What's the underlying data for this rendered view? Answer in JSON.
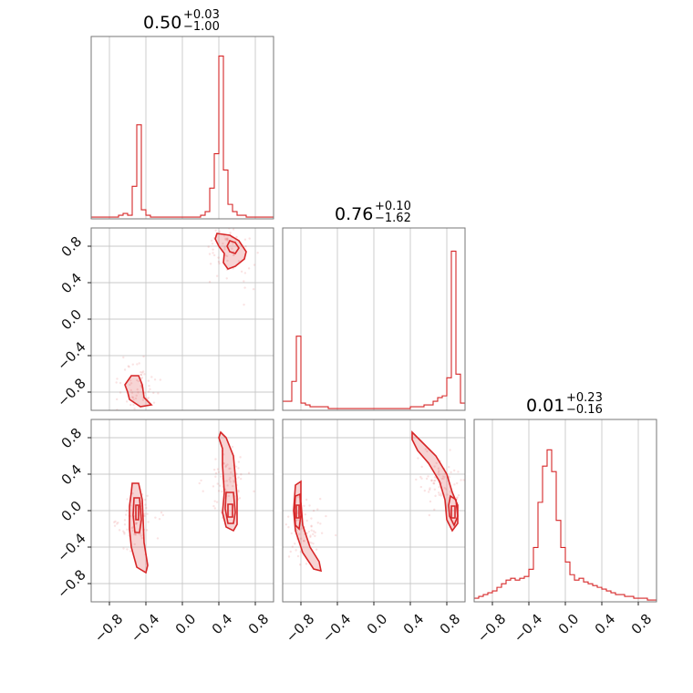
{
  "chart_data": {
    "type": "corner",
    "color": "#d62728",
    "range": [
      -1.0,
      1.0
    ],
    "ticks": [
      -0.8,
      -0.4,
      0.0,
      0.4,
      0.8
    ],
    "tick_labels": [
      "−0.8",
      "−0.4",
      "0.0",
      "0.4",
      "0.8"
    ],
    "grid": true,
    "titles": [
      {
        "value": "0.50",
        "plus": "+0.03",
        "minus": "−1.00"
      },
      {
        "value": "0.76",
        "plus": "+0.10",
        "minus": "−1.62"
      },
      {
        "value": "0.01",
        "plus": "+0.23",
        "minus": "−0.16"
      }
    ],
    "histograms": [
      {
        "bins": [
          -1.0,
          1.0
        ],
        "counts": [
          0.01,
          0.01,
          0.01,
          0.01,
          0.01,
          0.01,
          0.01,
          0.01,
          0.01,
          0.01,
          0.01,
          0.01,
          0.02,
          0.02,
          0.03,
          0.03,
          0.02,
          0.02,
          0.18,
          0.18,
          0.52,
          0.52,
          0.05,
          0.05,
          0.02,
          0.02,
          0.01,
          0.01,
          0.01,
          0.01,
          0.01,
          0.01,
          0.01,
          0.01,
          0.01,
          0.01,
          0.01,
          0.01,
          0.01,
          0.01,
          0.01,
          0.01,
          0.01,
          0.01,
          0.01,
          0.01,
          0.01,
          0.01,
          0.02,
          0.02,
          0.04,
          0.04,
          0.17,
          0.17,
          0.36,
          0.36,
          0.9,
          0.9,
          0.27,
          0.27,
          0.08,
          0.08,
          0.04,
          0.04,
          0.02,
          0.02,
          0.02,
          0.02,
          0.01,
          0.01,
          0.01,
          0.01,
          0.01,
          0.01,
          0.01,
          0.01,
          0.01,
          0.01,
          0.01,
          0.01
        ]
      },
      {
        "bins": [
          -1.0,
          1.0
        ],
        "counts": [
          0.05,
          0.05,
          0.05,
          0.05,
          0.16,
          0.16,
          0.41,
          0.41,
          0.04,
          0.04,
          0.03,
          0.03,
          0.02,
          0.02,
          0.02,
          0.02,
          0.02,
          0.02,
          0.02,
          0.02,
          0.01,
          0.01,
          0.01,
          0.01,
          0.01,
          0.01,
          0.01,
          0.01,
          0.01,
          0.01,
          0.01,
          0.01,
          0.01,
          0.01,
          0.01,
          0.01,
          0.01,
          0.01,
          0.01,
          0.01,
          0.01,
          0.01,
          0.01,
          0.01,
          0.01,
          0.01,
          0.01,
          0.01,
          0.01,
          0.01,
          0.01,
          0.01,
          0.01,
          0.01,
          0.01,
          0.01,
          0.02,
          0.02,
          0.02,
          0.02,
          0.02,
          0.02,
          0.03,
          0.03,
          0.03,
          0.03,
          0.05,
          0.05,
          0.07,
          0.07,
          0.08,
          0.08,
          0.18,
          0.18,
          0.88,
          0.88,
          0.2,
          0.2,
          0.04,
          0.04
        ]
      },
      {
        "bins": [
          -1.0,
          1.0
        ],
        "counts": [
          0.02,
          0.02,
          0.03,
          0.03,
          0.04,
          0.04,
          0.05,
          0.05,
          0.06,
          0.06,
          0.08,
          0.08,
          0.1,
          0.1,
          0.12,
          0.12,
          0.13,
          0.13,
          0.12,
          0.12,
          0.13,
          0.13,
          0.14,
          0.14,
          0.18,
          0.18,
          0.3,
          0.3,
          0.55,
          0.55,
          0.75,
          0.75,
          0.84,
          0.84,
          0.72,
          0.72,
          0.45,
          0.45,
          0.3,
          0.3,
          0.22,
          0.22,
          0.15,
          0.15,
          0.12,
          0.12,
          0.13,
          0.13,
          0.11,
          0.11,
          0.1,
          0.1,
          0.09,
          0.09,
          0.08,
          0.08,
          0.07,
          0.07,
          0.06,
          0.06,
          0.05,
          0.05,
          0.04,
          0.04,
          0.04,
          0.04,
          0.03,
          0.03,
          0.03,
          0.03,
          0.02,
          0.02,
          0.02,
          0.02,
          0.02,
          0.02,
          0.01,
          0.01,
          0.01,
          0.01
        ]
      }
    ],
    "contours": {
      "1-0": [
        {
          "fill": true,
          "points": [
            [
              0.38,
              0.94
            ],
            [
              0.52,
              0.92
            ],
            [
              0.62,
              0.86
            ],
            [
              0.7,
              0.74
            ],
            [
              0.68,
              0.66
            ],
            [
              0.58,
              0.58
            ],
            [
              0.5,
              0.55
            ],
            [
              0.45,
              0.62
            ],
            [
              0.46,
              0.72
            ],
            [
              0.4,
              0.8
            ],
            [
              0.36,
              0.88
            ]
          ]
        },
        {
          "fill": false,
          "points": [
            [
              0.52,
              0.86
            ],
            [
              0.58,
              0.84
            ],
            [
              0.62,
              0.78
            ],
            [
              0.58,
              0.72
            ],
            [
              0.52,
              0.74
            ],
            [
              0.49,
              0.8
            ]
          ]
        },
        {
          "fill": true,
          "points": [
            [
              -0.63,
              -0.72
            ],
            [
              -0.56,
              -0.62
            ],
            [
              -0.48,
              -0.62
            ],
            [
              -0.44,
              -0.72
            ],
            [
              -0.42,
              -0.86
            ],
            [
              -0.34,
              -0.94
            ],
            [
              -0.46,
              -0.96
            ],
            [
              -0.58,
              -0.88
            ],
            [
              -0.6,
              -0.8
            ]
          ]
        }
      ],
      "2-0": [
        {
          "fill": true,
          "points": [
            [
              -0.55,
              0.3
            ],
            [
              -0.48,
              0.3
            ],
            [
              -0.44,
              0.12
            ],
            [
              -0.43,
              -0.1
            ],
            [
              -0.42,
              -0.35
            ],
            [
              -0.38,
              -0.6
            ],
            [
              -0.4,
              -0.68
            ],
            [
              -0.5,
              -0.62
            ],
            [
              -0.56,
              -0.4
            ],
            [
              -0.58,
              -0.2
            ],
            [
              -0.58,
              0.05
            ],
            [
              -0.56,
              0.2
            ]
          ]
        },
        {
          "fill": false,
          "points": [
            [
              -0.53,
              0.14
            ],
            [
              -0.47,
              0.14
            ],
            [
              -0.45,
              -0.1
            ],
            [
              -0.47,
              -0.24
            ],
            [
              -0.52,
              -0.24
            ],
            [
              -0.54,
              -0.05
            ]
          ]
        },
        {
          "fill": false,
          "points": [
            [
              -0.51,
              0.06
            ],
            [
              -0.48,
              0.06
            ],
            [
              -0.48,
              -0.1
            ],
            [
              -0.51,
              -0.1
            ]
          ]
        },
        {
          "fill": true,
          "points": [
            [
              0.42,
              0.86
            ],
            [
              0.48,
              0.8
            ],
            [
              0.56,
              0.6
            ],
            [
              0.58,
              0.38
            ],
            [
              0.6,
              0.15
            ],
            [
              0.6,
              -0.15
            ],
            [
              0.56,
              -0.22
            ],
            [
              0.48,
              -0.18
            ],
            [
              0.44,
              -0.02
            ],
            [
              0.46,
              0.2
            ],
            [
              0.44,
              0.5
            ],
            [
              0.44,
              0.68
            ],
            [
              0.4,
              0.8
            ]
          ]
        },
        {
          "fill": false,
          "points": [
            [
              0.48,
              0.2
            ],
            [
              0.56,
              0.2
            ],
            [
              0.58,
              -0.02
            ],
            [
              0.56,
              -0.14
            ],
            [
              0.5,
              -0.14
            ],
            [
              0.47,
              0.02
            ]
          ]
        },
        {
          "fill": false,
          "points": [
            [
              0.5,
              0.07
            ],
            [
              0.55,
              0.07
            ],
            [
              0.55,
              -0.07
            ],
            [
              0.5,
              -0.07
            ]
          ]
        }
      ],
      "2-1": [
        {
          "fill": true,
          "points": [
            [
              -0.86,
              0.28
            ],
            [
              -0.8,
              0.32
            ],
            [
              -0.8,
              0.1
            ],
            [
              -0.78,
              -0.16
            ],
            [
              -0.7,
              -0.4
            ],
            [
              -0.6,
              -0.56
            ],
            [
              -0.58,
              -0.66
            ],
            [
              -0.66,
              -0.64
            ],
            [
              -0.78,
              -0.46
            ],
            [
              -0.86,
              -0.22
            ],
            [
              -0.88,
              0.0
            ]
          ]
        },
        {
          "fill": false,
          "points": [
            [
              -0.86,
              0.16
            ],
            [
              -0.81,
              0.18
            ],
            [
              -0.8,
              -0.05
            ],
            [
              -0.82,
              -0.2
            ],
            [
              -0.86,
              -0.16
            ],
            [
              -0.87,
              0.0
            ]
          ]
        },
        {
          "fill": false,
          "points": [
            [
              -0.85,
              0.06
            ],
            [
              -0.82,
              0.06
            ],
            [
              -0.82,
              -0.08
            ],
            [
              -0.85,
              -0.08
            ]
          ]
        },
        {
          "fill": true,
          "points": [
            [
              0.42,
              0.86
            ],
            [
              0.52,
              0.76
            ],
            [
              0.68,
              0.6
            ],
            [
              0.8,
              0.4
            ],
            [
              0.86,
              0.2
            ],
            [
              0.92,
              0.06
            ],
            [
              0.92,
              -0.14
            ],
            [
              0.86,
              -0.22
            ],
            [
              0.8,
              -0.1
            ],
            [
              0.78,
              0.12
            ],
            [
              0.72,
              0.32
            ],
            [
              0.6,
              0.52
            ],
            [
              0.48,
              0.66
            ],
            [
              0.42,
              0.78
            ]
          ]
        },
        {
          "fill": false,
          "points": [
            [
              0.84,
              0.16
            ],
            [
              0.9,
              0.12
            ],
            [
              0.92,
              -0.06
            ],
            [
              0.88,
              -0.16
            ],
            [
              0.83,
              -0.06
            ],
            [
              0.82,
              0.06
            ]
          ]
        },
        {
          "fill": false,
          "points": [
            [
              0.85,
              0.05
            ],
            [
              0.89,
              0.05
            ],
            [
              0.89,
              -0.08
            ],
            [
              0.85,
              -0.08
            ]
          ]
        }
      ]
    }
  }
}
